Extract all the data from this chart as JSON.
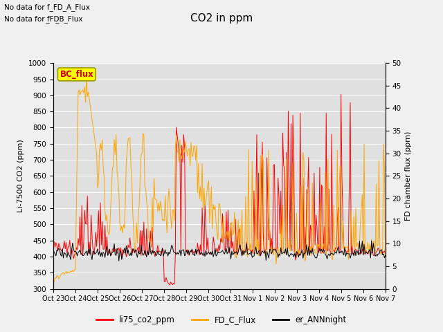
{
  "title": "CO2 in ppm",
  "ylabel_left": "Li-7500 CO2 (ppm)",
  "ylabel_right": "FD chamber flux (ppm)",
  "ylim_left": [
    300,
    1000
  ],
  "ylim_right": [
    0,
    50
  ],
  "annotation1": "No data for f_FD_A_Flux",
  "annotation2": "No data for f̲FD̲B_Flux",
  "legend_label1": "li75_co2_ppm",
  "legend_label2": "FD_C_Flux",
  "legend_label3": "er_ANNnight",
  "legend_color1": "#ff0000",
  "legend_color2": "#ffa500",
  "legend_color3": "#000000",
  "bc_flux_label": "BC_flux",
  "bc_flux_color": "#ffff00",
  "bc_flux_text_color": "#cc0000",
  "line_color1": "#ff0000",
  "line_color2": "#ffa500",
  "line_color3": "#000000",
  "bg_color": "#e0e0e0",
  "fig_bg_color": "#f0f0f0",
  "num_points": 360,
  "x_tick_labels": [
    "Oct 23",
    "Oct 24",
    "Oct 25",
    "Oct 26",
    "Oct 27",
    "Oct 28",
    "Oct 29",
    "Oct 30",
    "Oct 31",
    "Nov 1",
    "Nov 2",
    "Nov 3",
    "Nov 4",
    "Nov 5",
    "Nov 6",
    "Nov 7"
  ]
}
